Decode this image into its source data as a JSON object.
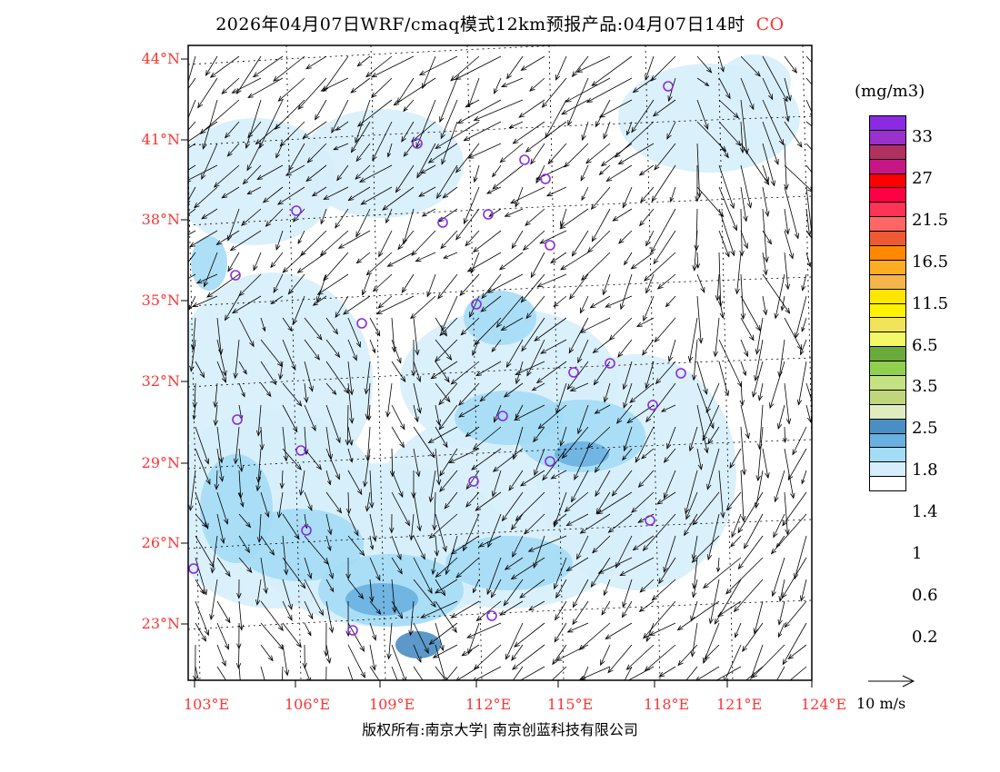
{
  "title": {
    "main": "2026年04月07日WRF/cmaq模式12km预报产品:04月07日14时",
    "species": "CO"
  },
  "lat_labels": [
    "44°N",
    "41°N",
    "38°N",
    "35°N",
    "32°N",
    "29°N",
    "26°N",
    "23°N"
  ],
  "lon_labels": [
    "103°E",
    "106°E",
    "109°E",
    "112°E",
    "115°E",
    "118°E",
    "121°E",
    "124°E"
  ],
  "colorbar": {
    "unit": "(mg/m3)",
    "labels": [
      "33",
      "27",
      "21.5",
      "16.5",
      "11.5",
      "6.5",
      "3.5",
      "2.5",
      "1.8",
      "1.4",
      "1",
      "0.6",
      "0.2"
    ],
    "colors": [
      "#8a2be2",
      "#9932cc",
      "#b03060",
      "#c71585",
      "#ff0000",
      "#ff0044",
      "#ff3355",
      "#ff6666",
      "#ee5a33",
      "#ff8800",
      "#ffad22",
      "#f4b54c",
      "#ffe600",
      "#fff200",
      "#f2e45a",
      "#f4f766",
      "#6aaa3a",
      "#90cf50",
      "#c4e184",
      "#c0d67a",
      "#e0ecc0",
      "#4a8ec4",
      "#6ab0e0",
      "#a4dbf5",
      "#d6eefb",
      "#ffffff"
    ]
  },
  "vector_legend": "10 m/s",
  "footer": "版权所有:南京大学| 南京创蓝科技有限公司"
}
